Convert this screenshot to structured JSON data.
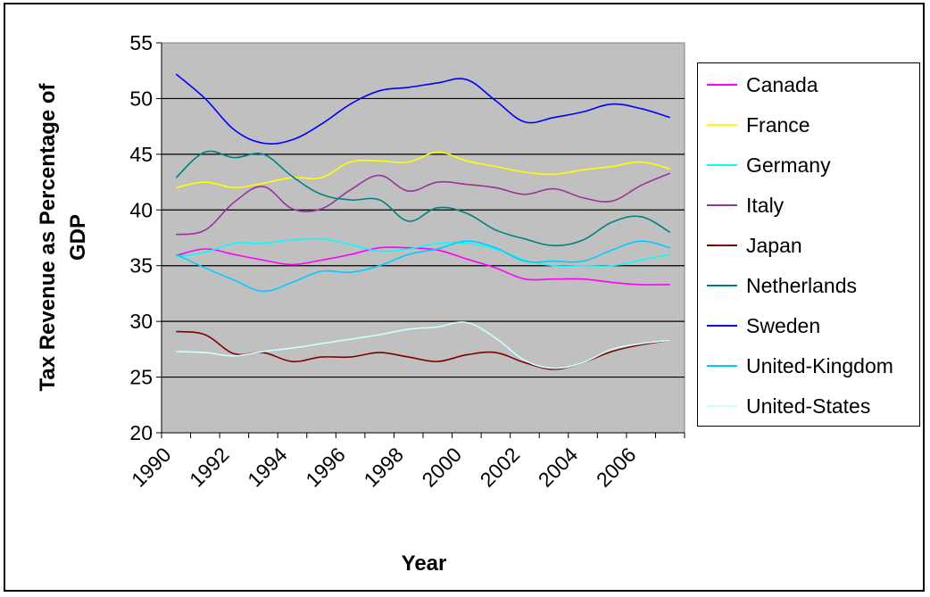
{
  "chart_data": {
    "type": "line",
    "title": "",
    "xlabel": "Year",
    "ylabel": "Tax Revenue as Percentage of GDP",
    "ylim": [
      20,
      55
    ],
    "yticks": [
      "20",
      "25",
      "30",
      "35",
      "40",
      "45",
      "50",
      "55"
    ],
    "xtick_labels": [
      "1990",
      "1992",
      "1994",
      "1996",
      "1998",
      "2000",
      "2002",
      "2004",
      "2006"
    ],
    "x": [
      1990,
      1991,
      1992,
      1993,
      1994,
      1995,
      1996,
      1997,
      1998,
      1999,
      2000,
      2001,
      2002,
      2003,
      2004,
      2005,
      2006,
      2007
    ],
    "grid": true,
    "legend_position": "right",
    "plot_background": "#c0c0c0",
    "series": [
      {
        "name": "Canada",
        "color": "#ff00ff",
        "values": [
          35.9,
          36.5,
          36.0,
          35.5,
          35.1,
          35.5,
          36.0,
          36.6,
          36.6,
          36.4,
          35.6,
          34.8,
          33.8,
          33.8,
          33.8,
          33.5,
          33.3,
          33.3
        ]
      },
      {
        "name": "France",
        "color": "#ffff00",
        "values": [
          42.0,
          42.5,
          42.0,
          42.4,
          42.9,
          42.9,
          44.3,
          44.4,
          44.3,
          45.2,
          44.4,
          43.9,
          43.4,
          43.2,
          43.6,
          43.9,
          44.3,
          43.7
        ]
      },
      {
        "name": "Germany",
        "color": "#00ffff",
        "values": [
          35.8,
          36.2,
          37.0,
          37.0,
          37.3,
          37.4,
          36.9,
          36.3,
          36.5,
          37.0,
          37.0,
          36.5,
          35.5,
          35.0,
          35.0,
          35.0,
          35.5,
          36.0
        ]
      },
      {
        "name": "Italy",
        "color": "#993399",
        "values": [
          37.8,
          38.2,
          40.7,
          42.1,
          40.1,
          40.1,
          41.8,
          43.1,
          41.7,
          42.5,
          42.3,
          42.0,
          41.4,
          41.9,
          41.1,
          40.8,
          42.2,
          43.3
        ]
      },
      {
        "name": "Japan",
        "color": "#800000",
        "values": [
          29.1,
          28.8,
          27.1,
          27.2,
          26.4,
          26.8,
          26.8,
          27.2,
          26.8,
          26.4,
          27.0,
          27.2,
          26.3,
          25.7,
          26.3,
          27.3,
          27.9,
          28.3
        ]
      },
      {
        "name": "Netherlands",
        "color": "#008080",
        "values": [
          42.9,
          45.2,
          44.7,
          45.0,
          43.0,
          41.4,
          40.9,
          40.9,
          39.0,
          40.2,
          39.7,
          38.2,
          37.4,
          36.8,
          37.3,
          38.9,
          39.4,
          38.0
        ]
      },
      {
        "name": "Sweden",
        "color": "#0000ff",
        "values": [
          52.2,
          50.0,
          47.2,
          46.0,
          46.3,
          47.7,
          49.5,
          50.7,
          51.0,
          51.4,
          51.7,
          49.8,
          47.9,
          48.3,
          48.8,
          49.5,
          49.1,
          48.3
        ]
      },
      {
        "name": "United-Kingdom",
        "color": "#00ccff",
        "values": [
          36.0,
          34.8,
          33.7,
          32.7,
          33.5,
          34.5,
          34.4,
          35.0,
          36.0,
          36.5,
          37.2,
          36.6,
          35.4,
          35.4,
          35.4,
          36.4,
          37.2,
          36.6
        ]
      },
      {
        "name": "United-States",
        "color": "#ccffff",
        "values": [
          27.3,
          27.2,
          26.9,
          27.3,
          27.6,
          28.0,
          28.4,
          28.8,
          29.3,
          29.5,
          29.9,
          28.5,
          26.5,
          25.8,
          26.3,
          27.5,
          28.0,
          28.3
        ]
      }
    ]
  }
}
